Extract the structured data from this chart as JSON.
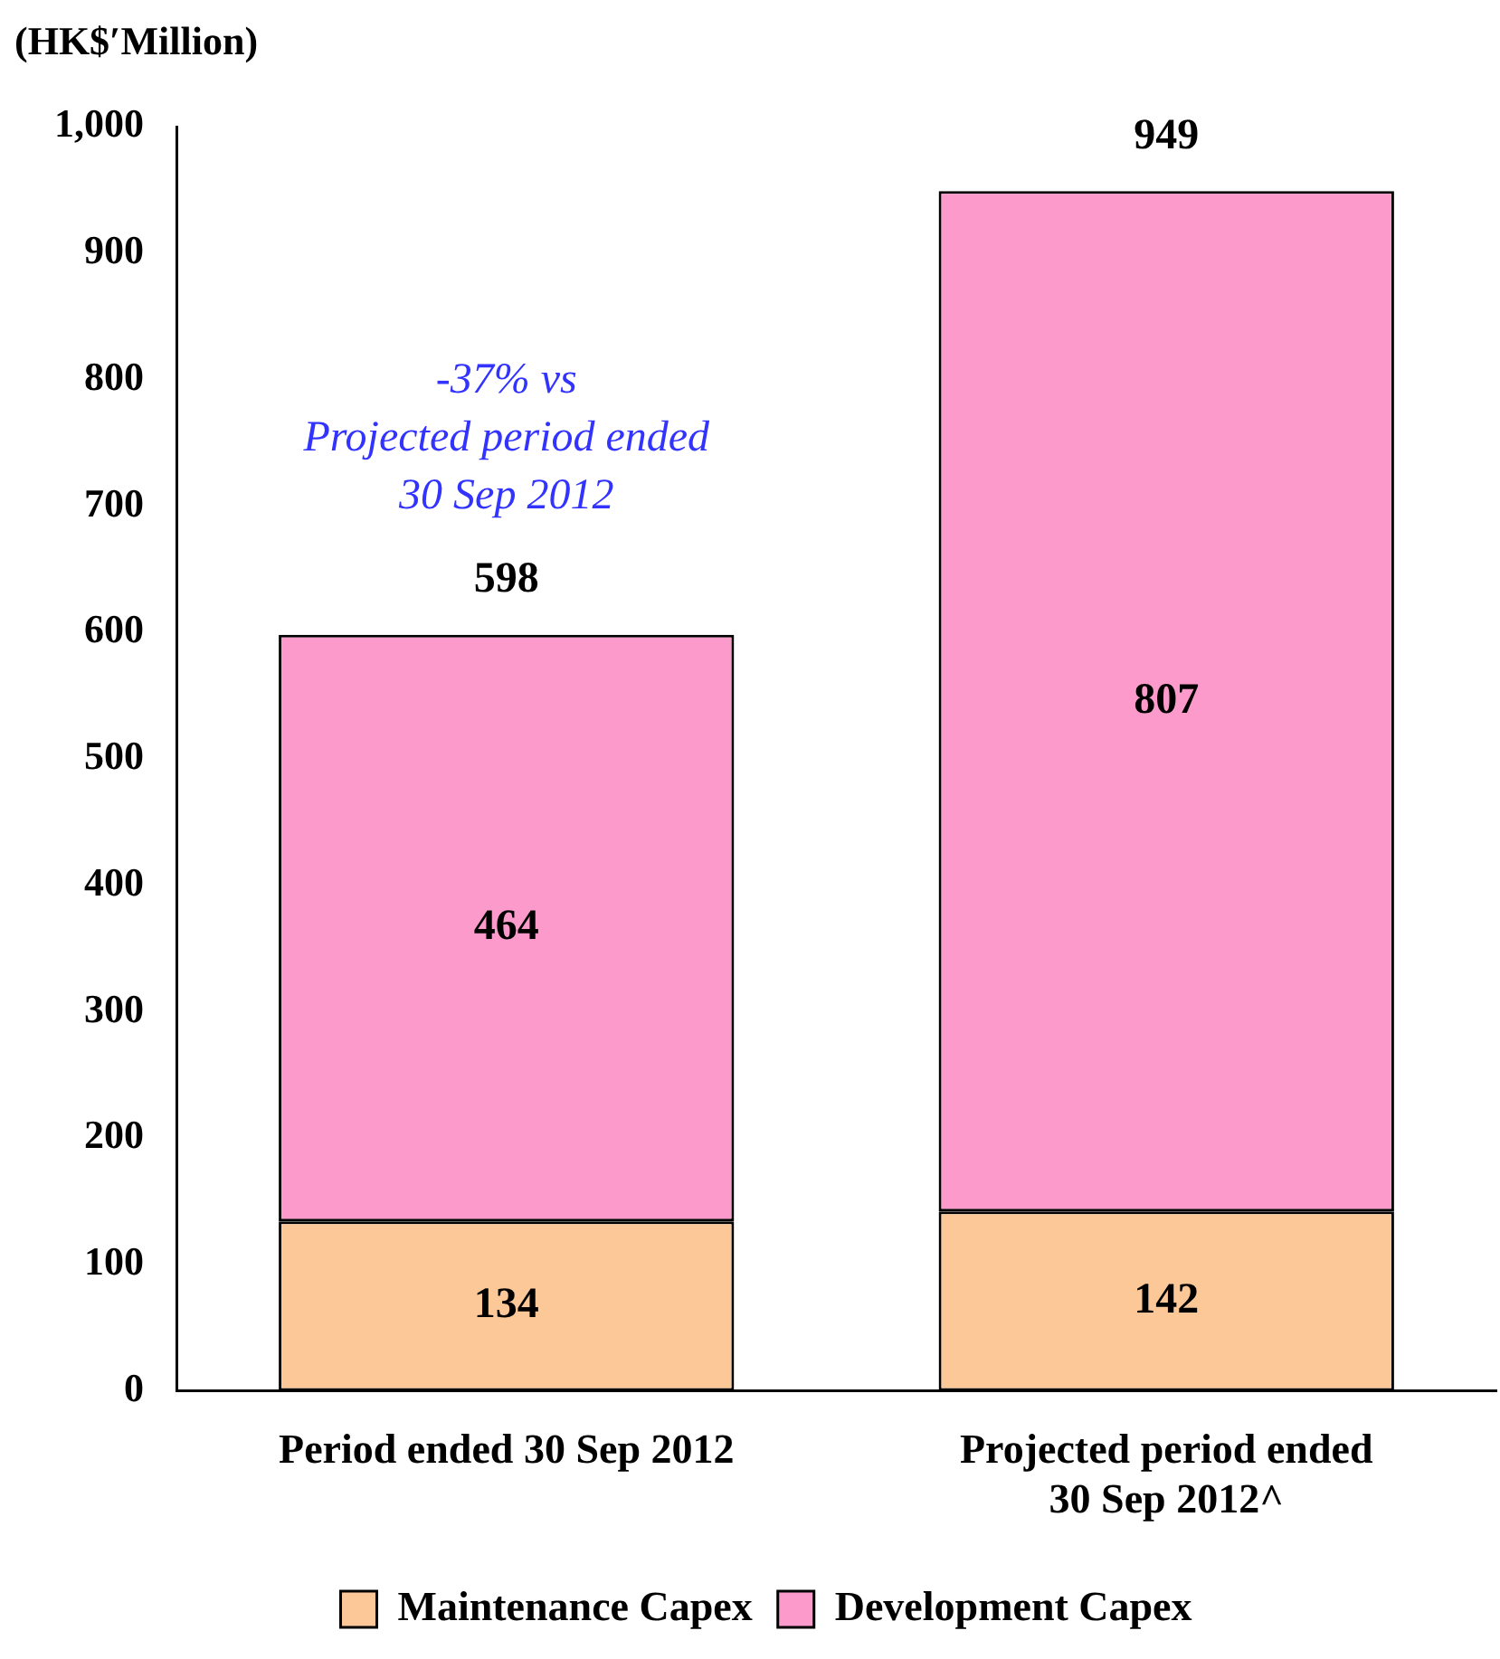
{
  "chart_data": {
    "type": "bar",
    "stacked": true,
    "ylabel": "(HK$′Million)",
    "categories": [
      "Period ended 30 Sep 2012",
      "Projected period ended 30 Sep 2012^"
    ],
    "series": [
      {
        "name": "Maintenance Capex",
        "color": "#fdc898",
        "values": [
          134,
          142
        ]
      },
      {
        "name": "Development Capex",
        "color": "#fd9acc",
        "values": [
          464,
          807
        ]
      }
    ],
    "ylim": [
      0,
      1000
    ],
    "yticks": [
      0,
      100,
      200,
      300,
      400,
      500,
      600,
      700,
      800,
      900,
      {
        "value": 1000,
        "label": "1,000"
      }
    ],
    "grid": false,
    "legend": "bottom",
    "data_labels": true,
    "totals": [
      "598",
      "949"
    ],
    "annotations": [
      "-37% vs\nProjected period ended\n30 Sep 2012"
    ]
  }
}
